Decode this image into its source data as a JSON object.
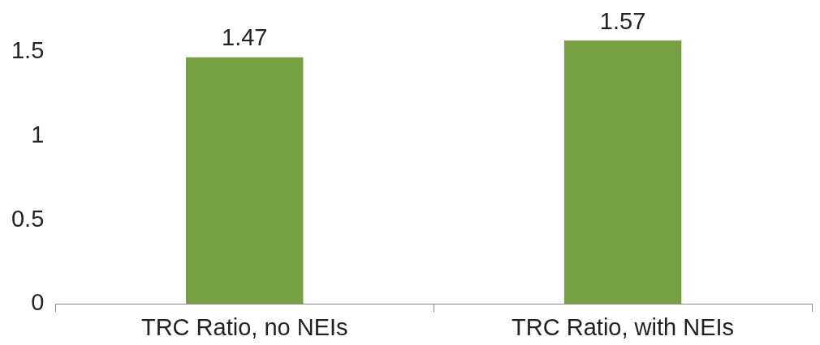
{
  "chart_data": {
    "type": "bar",
    "categories": [
      "TRC Ratio, no NEIs",
      "TRC Ratio, with NEIs"
    ],
    "values": [
      1.47,
      1.57
    ],
    "color": "#77a043",
    "ylim": [
      0,
      1.57
    ],
    "yticks": [
      0,
      0.5,
      1,
      1.5
    ],
    "grid": false,
    "legend": false,
    "data_labels": true
  }
}
